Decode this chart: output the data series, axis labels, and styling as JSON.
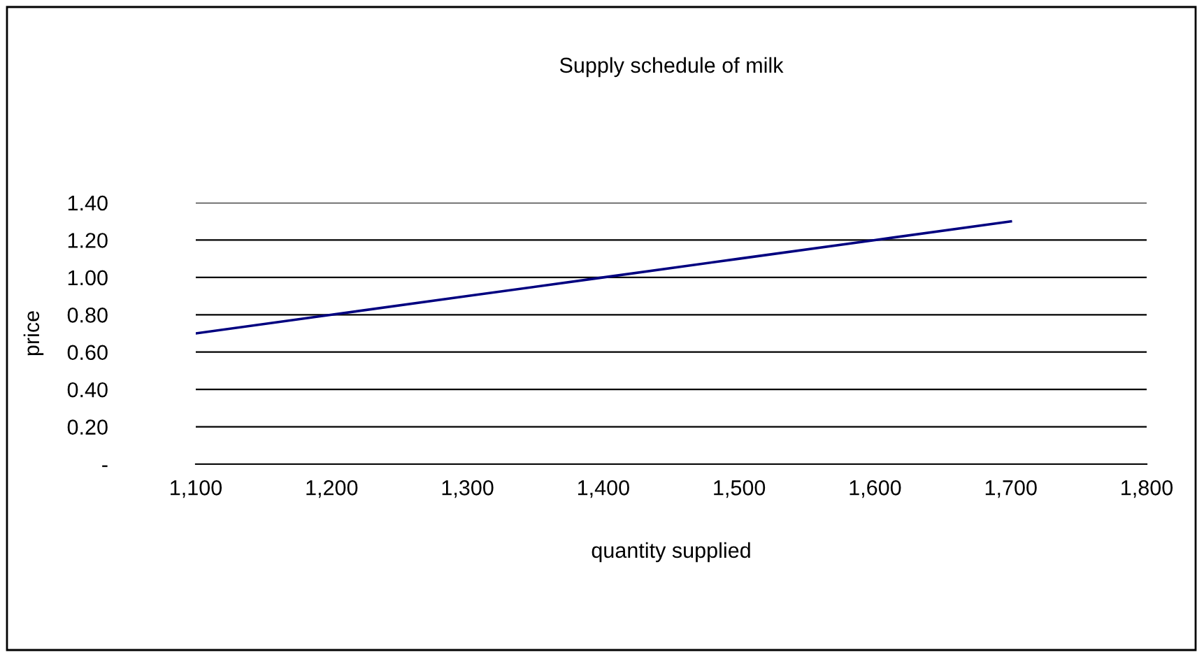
{
  "chart_data": {
    "type": "line",
    "title": "Supply schedule of milk",
    "xlabel": "quantity supplied",
    "ylabel": "price",
    "x": [
      1100,
      1200,
      1300,
      1400,
      1500,
      1600,
      1700
    ],
    "series": [
      {
        "color": "#000080",
        "values": [
          0.7,
          0.8,
          0.9,
          1.0,
          1.1,
          1.2,
          1.3
        ]
      }
    ],
    "xlim": [
      1100,
      1800
    ],
    "xticks": [
      {
        "value": 1100,
        "label": "1,100"
      },
      {
        "value": 1200,
        "label": "1,200"
      },
      {
        "value": 1300,
        "label": "1,300"
      },
      {
        "value": 1400,
        "label": "1,400"
      },
      {
        "value": 1500,
        "label": "1,500"
      },
      {
        "value": 1600,
        "label": "1,600"
      },
      {
        "value": 1700,
        "label": "1,700"
      },
      {
        "value": 1800,
        "label": "1,800"
      }
    ],
    "ylim": [
      0,
      1.4
    ],
    "yticks": [
      {
        "value": 0,
        "label": "-"
      },
      {
        "value": 0.2,
        "label": "0.20"
      },
      {
        "value": 0.4,
        "label": "0.40"
      },
      {
        "value": 0.6,
        "label": "0.60"
      },
      {
        "value": 0.8,
        "label": "0.80"
      },
      {
        "value": 1.0,
        "label": "1.00"
      },
      {
        "value": 1.2,
        "label": "1.20"
      },
      {
        "value": 1.4,
        "label": "1.40"
      }
    ],
    "grid": "y",
    "marker": "none",
    "line_style": "solid",
    "legend": false
  }
}
